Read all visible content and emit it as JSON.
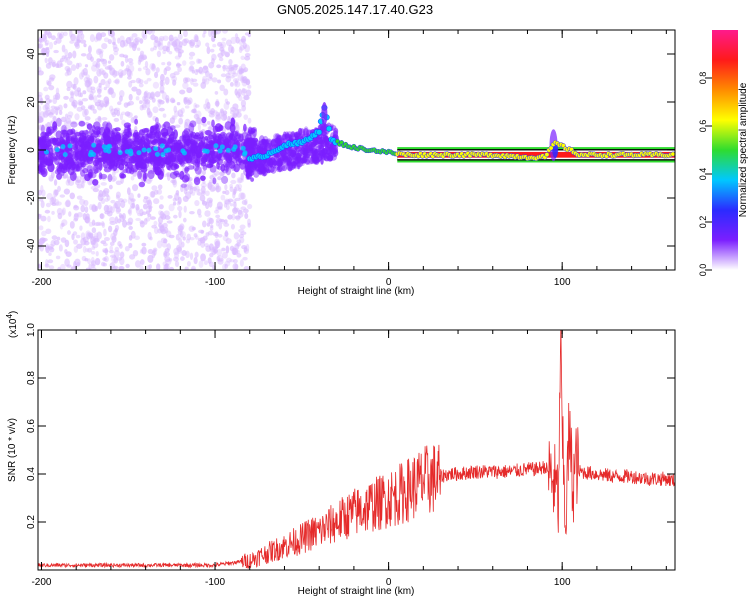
{
  "title": "GN05.2025.147.17.40.G23",
  "colors": {
    "signal_red": "#e52a2a",
    "band_red": "#ff1a1a",
    "band_dark": "#0b0b0b",
    "band_green": "#2fdc2f",
    "noise_purple": "#7b1fff",
    "noise_light": "#d8b8ff"
  },
  "colorbar": {
    "label": "Normalized spectral amplitude",
    "ticks": [
      "0.0",
      "0.2",
      "0.4",
      "0.6",
      "0.8"
    ],
    "tick_values": [
      0.0,
      0.2,
      0.4,
      0.6,
      0.8
    ],
    "range": [
      0,
      1
    ],
    "colormap": [
      "#ffffff",
      "#7b1fff",
      "#2b2bff",
      "#00c8ff",
      "#2fdc2f",
      "#ffff00",
      "#ff8c00",
      "#ff1a1a",
      "#ff1a8c"
    ]
  },
  "chart_data": [
    {
      "type": "heatmap",
      "title": "",
      "xlabel": "Height of straight line (km)",
      "ylabel": "Frequency (Hz)",
      "xlim": [
        -202,
        165
      ],
      "ylim": [
        -50,
        50
      ],
      "x_ticks": [
        -200,
        -100,
        0,
        100
      ],
      "x_tick_labels": [
        "-200",
        "-100",
        "0",
        "100"
      ],
      "y_ticks": [
        -40,
        -20,
        0,
        20,
        40
      ],
      "y_tick_labels": [
        "-40",
        "-20",
        "0",
        "20",
        "40"
      ],
      "dominant_ridge": [
        {
          "x": -80,
          "y": -4
        },
        {
          "x": -70,
          "y": -2
        },
        {
          "x": -60,
          "y": 2
        },
        {
          "x": -50,
          "y": 3
        },
        {
          "x": -40,
          "y": 8
        },
        {
          "x": -37,
          "y": 18
        },
        {
          "x": -33,
          "y": 4
        },
        {
          "x": -20,
          "y": 1
        },
        {
          "x": 0,
          "y": -1
        },
        {
          "x": 10,
          "y": -2
        },
        {
          "x": 60,
          "y": -2
        },
        {
          "x": 80,
          "y": -3
        },
        {
          "x": 90,
          "y": -3
        },
        {
          "x": 96,
          "y": 3
        },
        {
          "x": 110,
          "y": -2
        },
        {
          "x": 165,
          "y": -2
        }
      ],
      "band_center": -2,
      "band_range_x": [
        5,
        165
      ]
    },
    {
      "type": "line",
      "title": "",
      "xlabel": "Height of straight line (km)",
      "ylabel": "SNR (10 * v/v)",
      "y_multiplier": "(x10",
      "y_multiplier_exp": "4",
      "y_multiplier_close": ")",
      "xlim": [
        -202,
        165
      ],
      "ylim": [
        0,
        1.0
      ],
      "x_ticks": [
        -200,
        -100,
        0,
        100
      ],
      "x_tick_labels": [
        "-200",
        "-100",
        "0",
        "100"
      ],
      "y_ticks": [
        0.2,
        0.4,
        0.6,
        0.8,
        1.0
      ],
      "y_tick_labels": [
        "0.2",
        "0.4",
        "0.6",
        "0.8",
        "1.0"
      ],
      "series": [
        {
          "x": [
            -202,
            -180,
            -160,
            -140,
            -120,
            -100,
            -90,
            -80,
            -70,
            -60,
            -50,
            -45,
            -40,
            -35,
            -30,
            -25,
            -20,
            -15,
            -10,
            -5,
            0,
            5,
            10,
            15,
            20,
            25,
            30,
            35,
            40,
            50,
            60,
            70,
            80,
            85,
            90,
            93,
            96,
            98,
            99,
            100,
            102,
            104,
            106,
            108,
            110,
            120,
            130,
            140,
            150,
            160,
            165
          ],
          "y": [
            0.02,
            0.02,
            0.02,
            0.02,
            0.02,
            0.02,
            0.03,
            0.04,
            0.07,
            0.1,
            0.13,
            0.15,
            0.16,
            0.18,
            0.2,
            0.22,
            0.24,
            0.25,
            0.27,
            0.28,
            0.3,
            0.31,
            0.33,
            0.35,
            0.37,
            0.38,
            0.39,
            0.4,
            0.4,
            0.41,
            0.41,
            0.41,
            0.42,
            0.42,
            0.43,
            0.4,
            0.35,
            0.28,
            0.99,
            0.55,
            0.2,
            0.58,
            0.35,
            0.45,
            0.41,
            0.4,
            0.39,
            0.39,
            0.38,
            0.38,
            0.37
          ]
        }
      ]
    }
  ]
}
